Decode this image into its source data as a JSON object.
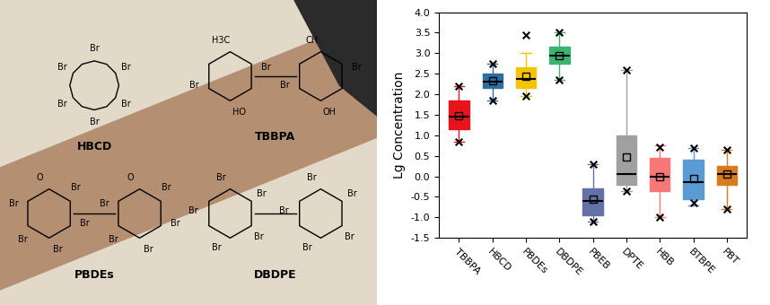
{
  "chart_data": {
    "type": "box",
    "ylabel": "Lg Concentration",
    "categories": [
      "TBBPA",
      "HBCD",
      "PBDEs",
      "DBDPE",
      "PBEB",
      "DPTE",
      "HBB",
      "BTBPE",
      "PBT"
    ],
    "colors": [
      "#e8141c",
      "#2e6fa3",
      "#f5c400",
      "#3cb371",
      "#6470a8",
      "#a0a0a0",
      "#f87878",
      "#5b9bd5",
      "#d97a1f"
    ],
    "whislo": [
      0.85,
      1.85,
      1.95,
      2.35,
      -1.1,
      -0.35,
      -1.0,
      -0.7,
      -0.8
    ],
    "q1": [
      1.15,
      2.15,
      2.15,
      2.75,
      -0.95,
      -0.2,
      -0.35,
      -0.55,
      -0.2
    ],
    "median": [
      1.45,
      2.3,
      2.38,
      2.95,
      -0.6,
      0.05,
      0.0,
      -0.15,
      0.05
    ],
    "q3": [
      1.85,
      2.5,
      2.65,
      3.15,
      -0.3,
      1.0,
      0.45,
      0.4,
      0.25
    ],
    "whishi": [
      2.2,
      2.75,
      3.0,
      3.5,
      0.3,
      2.6,
      0.75,
      0.7,
      0.65
    ],
    "mean": [
      1.48,
      2.32,
      2.45,
      2.95,
      -0.55,
      0.48,
      0.0,
      -0.05,
      0.05
    ],
    "min": [
      0.85,
      1.85,
      1.95,
      2.35,
      -1.1,
      -0.35,
      -1.0,
      -0.65,
      -0.8
    ],
    "max": [
      2.2,
      2.75,
      3.45,
      3.5,
      0.3,
      2.6,
      0.72,
      0.7,
      0.65
    ],
    "ylim": [
      -1.5,
      4.0
    ],
    "yticks": [
      {
        "value": -1.5,
        "label": "-1.5"
      },
      {
        "value": -1,
        "label": "-1.0"
      },
      {
        "value": -0.5,
        "label": "-0.5"
      },
      {
        "value": 0,
        "label": "0.0"
      },
      {
        "value": 0.5,
        "label": "0.5"
      },
      {
        "value": 1,
        "label": "1.0"
      },
      {
        "value": 1.5,
        "label": "1.5"
      },
      {
        "value": 2,
        "label": "2.0"
      },
      {
        "value": 2.5,
        "label": "2.5"
      },
      {
        "value": 3,
        "label": "3.0"
      },
      {
        "value": 3.5,
        "label": "3.5"
      },
      {
        "value": 4,
        "label": "4.0"
      }
    ],
    "grid": false
  },
  "structures": [
    {
      "name": "HBCD",
      "atoms": [
        "Br",
        "Br",
        "Br",
        "Br",
        "Br",
        "Br"
      ]
    },
    {
      "name": "TBBPA",
      "atoms": [
        "H3C",
        "CH",
        "Br",
        "Br",
        "HO",
        "OH",
        "Br",
        "Br"
      ]
    },
    {
      "name": "PBDEs",
      "atoms": [
        "O",
        "O",
        "Br",
        "Br",
        "Br",
        "Br",
        "Br",
        "Br",
        "Br",
        "Br",
        "Br",
        "Br"
      ]
    },
    {
      "name": "DBDPE",
      "atoms": [
        "Br",
        "Br",
        "Br",
        "Br",
        "Br",
        "Br",
        "Br",
        "Br",
        "Br",
        "Br"
      ]
    }
  ]
}
